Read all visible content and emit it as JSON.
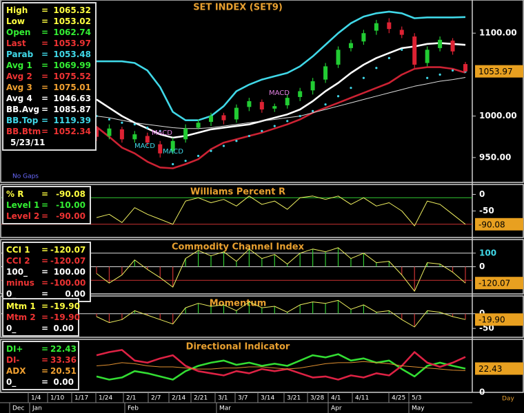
{
  "separator": "=",
  "date_axis": {
    "days": [
      "1/4",
      "1/10",
      "1/17",
      "1/24",
      "2/1",
      "2/7",
      "2/14",
      "2/21",
      "3/1",
      "3/7",
      "3/14",
      "3/21",
      "3/28",
      "4/1",
      "4/11",
      "4/25",
      "5/3"
    ],
    "months": [
      "Dec",
      "Jan",
      "Feb",
      "Mar",
      "Apr",
      "May"
    ],
    "unit": "Day"
  },
  "chart_data": [
    {
      "type": "candlestick",
      "title": "SET INDEX (SET9)",
      "date": "5/23/11",
      "note": "No Gaps",
      "ylim": [
        920,
        1140
      ],
      "yticks": [
        {
          "value": 1100,
          "label": "1100.00"
        },
        {
          "value": 1000,
          "label": "1000.00"
        },
        {
          "value": 950,
          "label": "950.00"
        }
      ],
      "open": [
        985,
        976,
        984,
        972,
        976,
        966,
        958,
        972,
        986,
        993,
        1001,
        996,
        1011,
        1017,
        1009,
        1013,
        1023,
        1031,
        1044,
        1062,
        1082,
        1090,
        1103,
        1113,
        1104,
        1096,
        1064,
        1082,
        1091,
        1062.74
      ],
      "high": [
        988,
        990,
        987,
        982,
        980,
        970,
        974,
        990,
        996,
        1004,
        1004,
        1014,
        1022,
        1020,
        1015,
        1026,
        1034,
        1046,
        1064,
        1084,
        1092,
        1104,
        1116,
        1118,
        1108,
        1100,
        1084,
        1096,
        1094,
        1065.32
      ],
      "low": [
        970,
        972,
        968,
        968,
        964,
        950,
        954,
        968,
        984,
        988,
        990,
        992,
        1006,
        1004,
        1005,
        1009,
        1018,
        1026,
        1040,
        1058,
        1078,
        1086,
        1098,
        1100,
        1094,
        1058,
        1060,
        1078,
        1074,
        1053.02
      ],
      "close": [
        975,
        985,
        972,
        978,
        968,
        955,
        970,
        985,
        992,
        1000,
        995,
        1010,
        1018,
        1008,
        1012,
        1022,
        1030,
        1042,
        1060,
        1080,
        1088,
        1100,
        1112,
        1105,
        1098,
        1062,
        1080,
        1092,
        1078,
        1053.97
      ],
      "up_color": "#22cc33",
      "down_color": "#dd2233",
      "series": [
        {
          "color": "#40d8e8",
          "style": "thick",
          "values": [
            1066,
            1066,
            1066,
            1064,
            1055,
            1035,
            1005,
            995,
            995,
            1000,
            1012,
            1030,
            1038,
            1044,
            1048,
            1052,
            1060,
            1072,
            1086,
            1100,
            1112,
            1120,
            1124,
            1126,
            1124,
            1118,
            1119,
            1119,
            1119,
            1119.39
          ]
        },
        {
          "color": "#cc2233",
          "style": "thick",
          "values": [
            987,
            975,
            962,
            955,
            945,
            938,
            937,
            942,
            948,
            960,
            968,
            972,
            976,
            980,
            985,
            990,
            996,
            1004,
            1010,
            1016,
            1022,
            1028,
            1034,
            1040,
            1050,
            1057,
            1059,
            1059,
            1057,
            1052.34
          ]
        },
        {
          "color": "#ffffff",
          "style": "thick",
          "values": [
            1020,
            1010,
            1000,
            992,
            985,
            978,
            974,
            976,
            980,
            984,
            986,
            988,
            990,
            994,
            998,
            1002,
            1008,
            1018,
            1030,
            1040,
            1052,
            1062,
            1070,
            1076,
            1082,
            1084,
            1087,
            1088,
            1087,
            1085.87
          ]
        },
        {
          "color": "#dddddd",
          "style": "line",
          "values": [
            1000,
            998,
            995,
            992,
            990,
            988,
            986,
            985,
            985,
            986,
            988,
            990,
            992,
            994,
            996,
            998,
            1000,
            1004,
            1008,
            1012,
            1016,
            1020,
            1024,
            1028,
            1032,
            1036,
            1039,
            1042,
            1044,
            1046.63
          ]
        },
        {
          "color": "#40d8e8",
          "style": "dots",
          "values": [
            1000,
            996,
            992,
            990,
            986,
            982,
            942,
            946,
            952,
            958,
            964,
            970,
            976,
            982,
            988,
            994,
            1000,
            1006,
            1014,
            1024,
            1034,
            1046,
            1058,
            1070,
            1080,
            1090,
            1046,
            1050,
            1055,
            1053.48
          ]
        }
      ],
      "annotations": [
        "MACD",
        "MACD",
        "MACD",
        "MACD"
      ],
      "readouts": [
        {
          "label": "High",
          "value": "1065.32",
          "color": "#ffff40"
        },
        {
          "label": "Low",
          "value": "1053.02",
          "color": "#ffff40"
        },
        {
          "label": "Open",
          "value": "1062.74",
          "color": "#33ee33"
        },
        {
          "label": "Last",
          "value": "1053.97",
          "color": "#ee3333"
        },
        {
          "label": "Parab",
          "value": "1053.48",
          "color": "#40d8e8"
        },
        {
          "label": "Avg 1",
          "value": "1069.99",
          "color": "#33ee33"
        },
        {
          "label": "Avg 2",
          "value": "1075.52",
          "color": "#ee3333"
        },
        {
          "label": "Avg 3",
          "value": "1075.01",
          "color": "#f0a030"
        },
        {
          "label": "Avg 4",
          "value": "1046.63",
          "color": "#ffffff"
        },
        {
          "label": "BB.Avg",
          "value": "1085.87",
          "color": "#ffffff"
        },
        {
          "label": "BB.Top",
          "value": "1119.39",
          "color": "#40d8e8"
        },
        {
          "label": "BB.Btm",
          "value": "1052.34",
          "color": "#ee3333"
        }
      ],
      "box_value": 3
    },
    {
      "type": "line",
      "title": "Williams Percent R",
      "ylim": [
        -130,
        30
      ],
      "yticks": [
        0,
        -50
      ],
      "levels": [
        {
          "value": -10,
          "color": "#33cc33"
        },
        {
          "value": -90,
          "color": "#cc3333"
        }
      ],
      "series": [
        {
          "color": "#f0f060",
          "style": "line",
          "values": [
            -70,
            -60,
            -85,
            -40,
            -60,
            -75,
            -90,
            -20,
            -10,
            -25,
            -15,
            -35,
            -5,
            -30,
            -20,
            -45,
            -10,
            -5,
            -15,
            -5,
            -30,
            -10,
            -35,
            -25,
            -50,
            -95,
            -20,
            -30,
            -60,
            -90.08
          ]
        }
      ],
      "readouts": [
        {
          "label": "% R",
          "value": "-90.08",
          "color": "#ffff40"
        },
        {
          "label": "Level 1",
          "value": "-10.00",
          "color": "#33ee33"
        },
        {
          "label": "Level 2",
          "value": "-90.00",
          "color": "#ee3333"
        }
      ],
      "box_value": 0
    },
    {
      "type": "line",
      "title": "Commodity Channel Index",
      "ylim": [
        -200,
        200
      ],
      "yticks": [
        100,
        0
      ],
      "levels": [
        {
          "value": 100,
          "color": "#dddddd"
        },
        {
          "value": 0,
          "color": "#dddddd"
        },
        {
          "value": -100,
          "color": "#cc3333"
        }
      ],
      "series": [
        {
          "color": "#f0f060",
          "style": "histogram",
          "pos_color": "#33cc33",
          "neg_color": "#cc3333",
          "values": [
            -50,
            -120,
            -60,
            50,
            -20,
            -80,
            -150,
            60,
            120,
            80,
            110,
            40,
            130,
            60,
            90,
            20,
            100,
            130,
            110,
            140,
            60,
            100,
            30,
            40,
            -60,
            -180,
            30,
            20,
            -40,
            -120.07
          ]
        }
      ],
      "readouts": [
        {
          "label": "CCI 1",
          "value": "-120.07",
          "color": "#ffff40"
        },
        {
          "label": "CCI 2",
          "value": "-120.07",
          "color": "#ee3333"
        },
        {
          "label": "100_",
          "value": "100.00",
          "color": "#ffffff"
        },
        {
          "label": "minus",
          "value": "-100.00",
          "color": "#ee3333"
        },
        {
          "label": "0_",
          "value": "0.00",
          "color": "#ffffff"
        }
      ],
      "box_value": 0
    },
    {
      "type": "line",
      "title": "Momentum",
      "ylim": [
        -80,
        60
      ],
      "yticks": [
        0,
        -50
      ],
      "levels": [
        {
          "value": 0,
          "color": "#dddddd"
        }
      ],
      "series": [
        {
          "color": "#f0f060",
          "style": "histogram",
          "pos_color": "#33cc33",
          "neg_color": "#cc3333",
          "values": [
            -10,
            -30,
            -20,
            10,
            -5,
            -20,
            -35,
            20,
            35,
            25,
            30,
            10,
            40,
            20,
            25,
            5,
            30,
            40,
            35,
            45,
            15,
            30,
            5,
            10,
            -20,
            -45,
            10,
            5,
            -10,
            -19.9
          ]
        }
      ],
      "readouts": [
        {
          "label": "Mtm 1",
          "value": "-19.90",
          "color": "#ffff40"
        },
        {
          "label": "Mtm 2",
          "value": "-19.90",
          "color": "#ee3333"
        },
        {
          "label": "0_",
          "value": "0.00",
          "color": "#ffffff"
        }
      ],
      "box_value": 0
    },
    {
      "type": "line",
      "title": "Directional Indicator",
      "ylim": [
        0,
        50
      ],
      "yticks": [
        0
      ],
      "levels": [],
      "series": [
        {
          "color": "#33dd33",
          "style": "thick",
          "values": [
            15,
            12,
            14,
            20,
            18,
            15,
            12,
            20,
            25,
            28,
            30,
            26,
            28,
            25,
            27,
            25,
            30,
            35,
            33,
            36,
            30,
            32,
            28,
            30,
            22,
            15,
            25,
            28,
            25,
            22.43
          ]
        },
        {
          "color": "#dd2244",
          "style": "thick",
          "values": [
            35,
            38,
            40,
            30,
            28,
            32,
            35,
            25,
            20,
            18,
            16,
            20,
            18,
            22,
            20,
            22,
            18,
            14,
            15,
            12,
            16,
            14,
            18,
            16,
            25,
            38,
            28,
            24,
            28,
            33.36
          ]
        },
        {
          "color": "#e09030",
          "style": "line",
          "values": [
            25,
            26,
            28,
            27,
            25,
            24,
            24,
            23,
            22,
            22,
            23,
            23,
            24,
            24,
            23,
            22,
            23,
            25,
            27,
            28,
            28,
            29,
            28,
            27,
            25,
            24,
            23,
            22,
            21,
            20.51
          ]
        }
      ],
      "readouts": [
        {
          "label": "DI+",
          "value": "22.43",
          "color": "#33ee33"
        },
        {
          "label": "DI-",
          "value": "33.36",
          "color": "#ee3333"
        },
        {
          "label": "ADX",
          "value": "20.51",
          "color": "#f0a030"
        },
        {
          "label": "0_",
          "value": "0.00",
          "color": "#ffffff"
        }
      ],
      "box_value": 0
    }
  ]
}
